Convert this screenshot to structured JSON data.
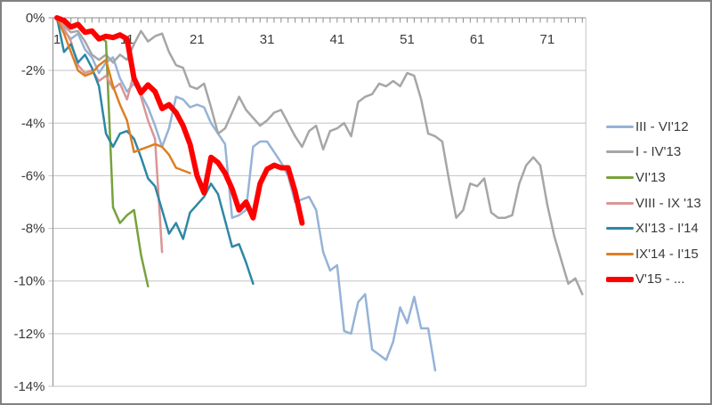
{
  "chart_data": {
    "type": "line",
    "title": "",
    "xlabel": "",
    "ylabel": "",
    "x_ticks": [
      "1",
      "11",
      "21",
      "31",
      "41",
      "51",
      "61",
      "71"
    ],
    "x_tick_values": [
      1,
      11,
      21,
      31,
      41,
      51,
      61,
      71
    ],
    "y_ticks": [
      "0%",
      "-2%",
      "-4%",
      "-6%",
      "-8%",
      "-10%",
      "-12%",
      "-14%"
    ],
    "y_tick_values": [
      0,
      -2,
      -4,
      -6,
      -8,
      -10,
      -12,
      -14
    ],
    "ylim": [
      -14,
      0
    ],
    "x_start": 1,
    "x_end": 76,
    "grid": "horizontal",
    "legend_position": "right",
    "series": [
      {
        "name": "III - VI'12",
        "color": "#95B3D7",
        "width": 2.5,
        "values": [
          0,
          -0.5,
          -0.8,
          -0.6,
          -1.2,
          -1.5,
          -2.1,
          -1.7,
          -1.5,
          -2.3,
          -2.8,
          -2.5,
          -2.9,
          -3.4,
          -4.1,
          -4.9,
          -4.2,
          -3.0,
          -3.1,
          -3.4,
          -3.3,
          -3.4,
          -4.0,
          -4.4,
          -4.8,
          -7.6,
          -7.5,
          -7.3,
          -4.9,
          -4.7,
          -4.7,
          -5.1,
          -5.5,
          -6.0,
          -7.0,
          -6.9,
          -6.8,
          -7.3,
          -8.9,
          -9.6,
          -9.4,
          -11.9,
          -12.0,
          -10.8,
          -10.5,
          -12.6,
          -12.8,
          -13.0,
          -12.3,
          -11.0,
          -11.6,
          -10.6,
          -11.8,
          -11.8,
          -13.4
        ]
      },
      {
        "name": "I - IV'13",
        "color": "#A6A6A6",
        "width": 2.5,
        "values": [
          0,
          -0.3,
          -0.55,
          -0.5,
          -0.9,
          -1.4,
          -1.6,
          -1.4,
          -1.7,
          -1.4,
          -1.6,
          -1.0,
          -0.5,
          -0.9,
          -0.7,
          -0.6,
          -1.3,
          -1.8,
          -1.9,
          -2.6,
          -2.7,
          -2.5,
          -3.4,
          -4.4,
          -4.2,
          -3.6,
          -3.0,
          -3.5,
          -3.8,
          -4.1,
          -3.9,
          -3.6,
          -3.5,
          -4.0,
          -4.5,
          -4.9,
          -4.3,
          -4.1,
          -5.0,
          -4.3,
          -4.2,
          -4.0,
          -4.5,
          -3.2,
          -3.0,
          -2.9,
          -2.5,
          -2.6,
          -2.4,
          -2.6,
          -2.1,
          -2.2,
          -3.1,
          -4.4,
          -4.5,
          -4.7,
          -6.2,
          -7.6,
          -7.3,
          -6.3,
          -6.4,
          -6.1,
          -7.4,
          -7.6,
          -7.6,
          -7.5,
          -6.3,
          -5.6,
          -5.3,
          -5.6,
          -7.1,
          -8.3,
          -9.2,
          -10.1,
          -9.9,
          -10.5
        ]
      },
      {
        "name": "VI'13",
        "color": "#77A23C",
        "width": 2.5,
        "values": [
          0,
          -0.1,
          -0.3,
          -0.25,
          -0.5,
          -0.45,
          -0.7,
          -0.9,
          -7.2,
          -7.8,
          -7.5,
          -7.3,
          -9.0,
          -10.2
        ]
      },
      {
        "name": "VIII - IX '13",
        "color": "#D99694",
        "width": 2.5,
        "values": [
          0,
          -0.4,
          -0.9,
          -1.8,
          -2.1,
          -2.0,
          -2.4,
          -2.2,
          -2.7,
          -2.5,
          -3.1,
          -2.1,
          -3.0,
          -3.9,
          -4.6,
          -8.9
        ]
      },
      {
        "name": "XI'13 - I'14",
        "color": "#2E87A5",
        "width": 2.5,
        "values": [
          0,
          -1.3,
          -1.0,
          -1.7,
          -1.4,
          -1.9,
          -2.6,
          -4.4,
          -4.9,
          -4.4,
          -4.3,
          -4.6,
          -5.3,
          -6.1,
          -6.4,
          -7.3,
          -8.2,
          -7.8,
          -8.4,
          -7.4,
          -7.1,
          -6.8,
          -6.3,
          -6.7,
          -7.7,
          -8.7,
          -8.6,
          -9.3,
          -10.1
        ]
      },
      {
        "name": "IX'14 - I'15",
        "color": "#DE7E23",
        "width": 2.5,
        "values": [
          0,
          -0.6,
          -1.3,
          -2.0,
          -2.2,
          -2.1,
          -1.8,
          -1.6,
          -2.6,
          -3.3,
          -3.9,
          -5.1,
          -5.0,
          -4.9,
          -4.8,
          -4.9,
          -5.2,
          -5.7,
          -5.8,
          -5.9
        ]
      },
      {
        "name": "V'15 - ...",
        "color": "#FF0000",
        "width": 6,
        "values": [
          0,
          -0.1,
          -0.35,
          -0.25,
          -0.55,
          -0.5,
          -0.8,
          -0.7,
          -0.75,
          -0.65,
          -0.8,
          -2.3,
          -2.85,
          -2.55,
          -2.8,
          -3.45,
          -3.3,
          -3.6,
          -4.1,
          -4.8,
          -6.0,
          -6.65,
          -5.3,
          -5.5,
          -5.9,
          -6.5,
          -7.3,
          -7.0,
          -7.6,
          -6.3,
          -5.75,
          -5.6,
          -5.7,
          -5.7,
          -6.6,
          -7.8
        ]
      }
    ]
  },
  "styles": {
    "background": "#FFFFFF",
    "outer_border_color": "#818181",
    "grid_color": "#C3C3C3",
    "axis_color": "#8C8C8C",
    "text_color": "#3a3a3a"
  }
}
